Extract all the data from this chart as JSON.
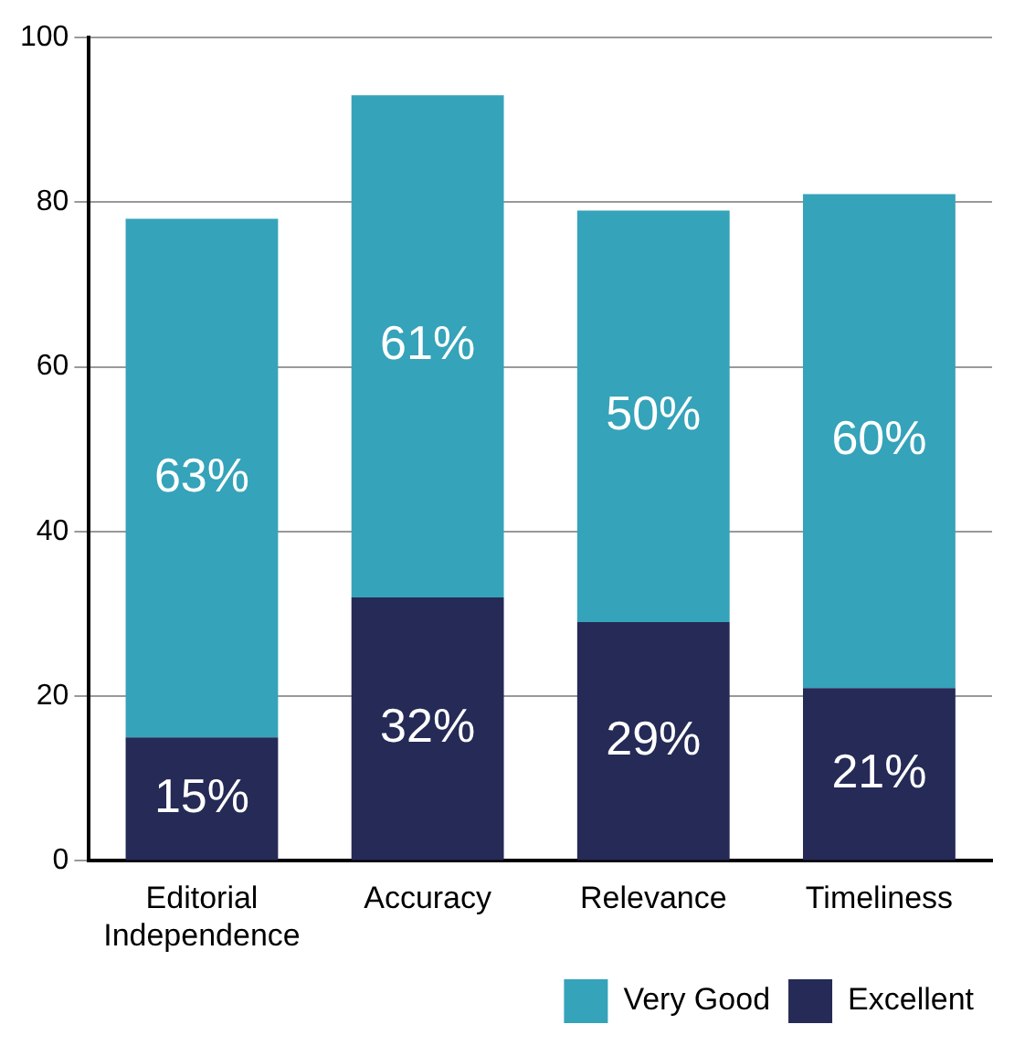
{
  "chart_data": {
    "type": "bar",
    "categories": [
      "Editorial Independence",
      "Accuracy",
      "Relevance",
      "Timeliness"
    ],
    "stacked": true,
    "series": [
      {
        "name": "Excellent",
        "color": "#252a56",
        "values": [
          15,
          32,
          29,
          21
        ],
        "value_labels": [
          "15%",
          "32%",
          "29%",
          "21%"
        ]
      },
      {
        "name": "Very Good",
        "color": "#35a3b9",
        "values": [
          63,
          61,
          50,
          60
        ],
        "value_labels": [
          "63%",
          "61%",
          "50%",
          "60%"
        ]
      }
    ],
    "ylim": [
      0,
      100
    ],
    "yticks": [
      0,
      20,
      40,
      60,
      80,
      100
    ],
    "grid": "y",
    "legend": "bottom right"
  }
}
